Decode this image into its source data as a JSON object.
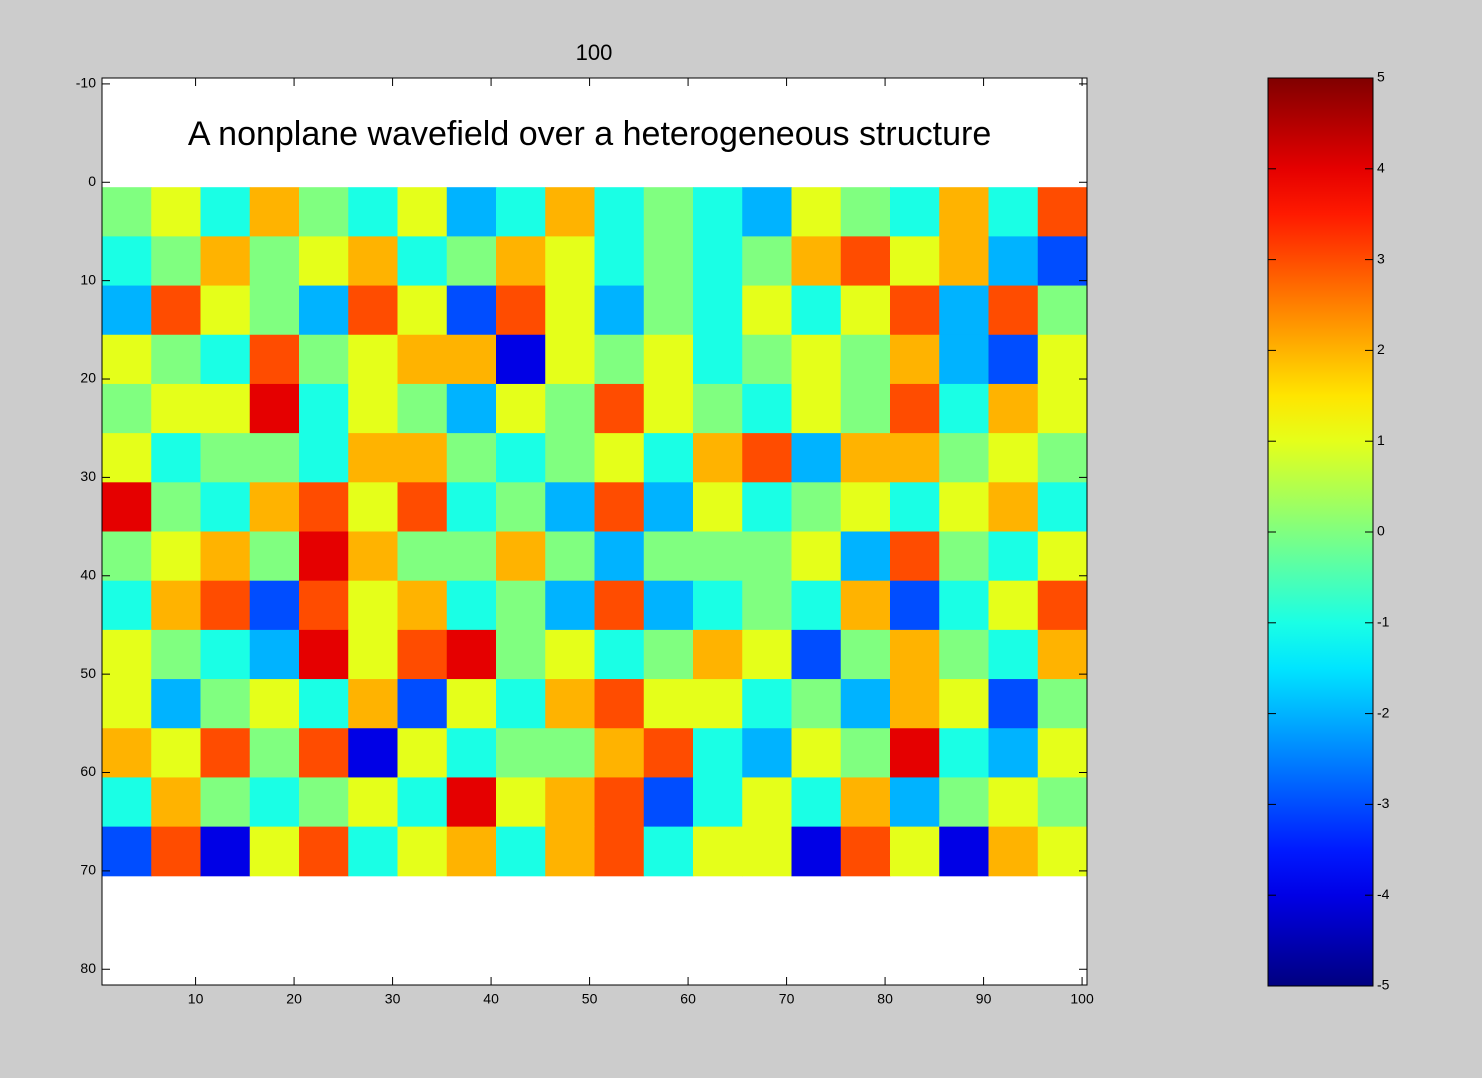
{
  "chart_data": {
    "type": "heatmap",
    "title": "100",
    "annotation": "A nonplane wavefield over a heterogeneous structure",
    "annotation_at": [
      50,
      -4.7
    ],
    "xlim": [
      0.5,
      100.5
    ],
    "ylim": [
      -10.6,
      81.6
    ],
    "xticks": [
      10,
      20,
      30,
      40,
      50,
      60,
      70,
      80,
      90,
      100
    ],
    "yticks": [
      -10,
      0,
      10,
      20,
      30,
      40,
      50,
      60,
      70,
      80
    ],
    "image_x": [
      0.5,
      100.5
    ],
    "image_y": [
      0.5,
      70.5
    ],
    "clim": [
      -5,
      5
    ],
    "cticks": [
      -5,
      -4,
      -3,
      -2,
      -1,
      0,
      1,
      2,
      3,
      4,
      5
    ],
    "colormap": "jet",
    "z": [
      [
        0,
        1,
        -1,
        2,
        0,
        -1,
        1,
        -2,
        -1,
        2,
        -1,
        0,
        -1,
        -2,
        1,
        0,
        -1,
        2,
        -1,
        3
      ],
      [
        -1,
        0,
        2,
        0,
        1,
        2,
        -1,
        0,
        2,
        1,
        -1,
        0,
        -1,
        0,
        2,
        3,
        1,
        2,
        -2,
        -3
      ],
      [
        -2,
        3,
        1,
        0,
        -2,
        3,
        1,
        -3,
        3,
        1,
        -2,
        0,
        -1,
        1,
        -1,
        1,
        3,
        -2,
        3,
        0
      ],
      [
        1,
        0,
        -1,
        3,
        0,
        1,
        2,
        2,
        -4,
        1,
        0,
        1,
        -1,
        0,
        1,
        0,
        2,
        -2,
        -3,
        1
      ],
      [
        0,
        1,
        1,
        4,
        -1,
        1,
        0,
        -2,
        1,
        0,
        3,
        1,
        0,
        -1,
        1,
        0,
        3,
        -1,
        2,
        1
      ],
      [
        1,
        -1,
        0,
        0,
        -1,
        2,
        2,
        0,
        -1,
        0,
        1,
        -1,
        2,
        3,
        -2,
        2,
        2,
        0,
        1,
        0
      ],
      [
        4,
        0,
        -1,
        2,
        3,
        1,
        3,
        -1,
        0,
        -2,
        3,
        -2,
        1,
        -1,
        0,
        1,
        -1,
        1,
        2,
        -1
      ],
      [
        0,
        1,
        2,
        0,
        4,
        2,
        0,
        0,
        2,
        0,
        -2,
        0,
        0,
        0,
        1,
        -2,
        3,
        0,
        -1,
        1
      ],
      [
        -1,
        2,
        3,
        -3,
        3,
        1,
        2,
        -1,
        0,
        -2,
        3,
        -2,
        -1,
        0,
        -1,
        2,
        -3,
        -1,
        1,
        3
      ],
      [
        1,
        0,
        -1,
        -2,
        4,
        1,
        3,
        4,
        0,
        1,
        -1,
        0,
        2,
        1,
        -3,
        0,
        2,
        0,
        -1,
        2
      ],
      [
        1,
        -2,
        0,
        1,
        -1,
        2,
        -3,
        1,
        -1,
        2,
        3,
        1,
        1,
        -1,
        0,
        -2,
        2,
        1,
        -3,
        0
      ],
      [
        2,
        1,
        3,
        0,
        3,
        -4,
        1,
        -1,
        0,
        0,
        2,
        3,
        -1,
        -2,
        1,
        0,
        4,
        -1,
        -2,
        1
      ],
      [
        -1,
        2,
        0,
        -1,
        0,
        1,
        -1,
        4,
        1,
        2,
        3,
        -3,
        -1,
        1,
        -1,
        2,
        -2,
        0,
        1,
        0
      ],
      [
        -3,
        3,
        -4,
        1,
        3,
        -1,
        1,
        2,
        -1,
        2,
        3,
        -1,
        1,
        1,
        -4,
        3,
        1,
        -4,
        2,
        1
      ]
    ]
  }
}
